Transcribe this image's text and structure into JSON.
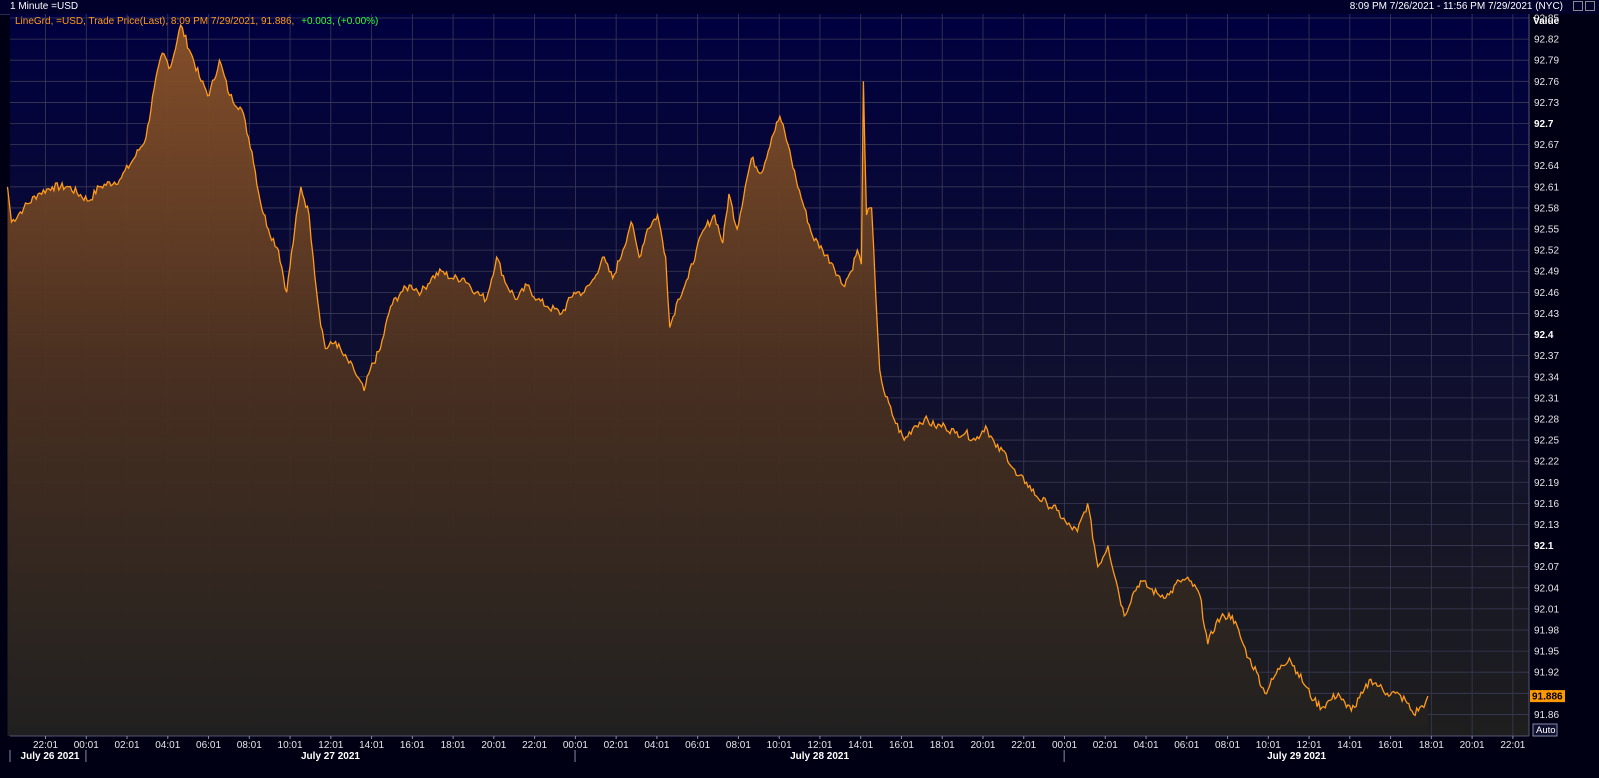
{
  "window": {
    "title": "1 Minute =USD",
    "range_text": "8:09 PM 7/26/2021 - 11:56 PM 7/29/2021 (NYC)"
  },
  "legend": {
    "prefix": "LineGrd, =USD, Trade Price(Last), 8:09 PM 7/29/2021, 91.886,",
    "change": "+0.003, (+0.00%)"
  },
  "axis": {
    "value_label": "Value",
    "auto_label": "Auto",
    "last_value_label": "91.886"
  },
  "colors": {
    "line": "#ff9a1a",
    "change": "#33ff33",
    "grid": "#3a3a55",
    "background": "#000033",
    "last_badge": "#ff9900"
  },
  "chart_data": {
    "type": "area",
    "title": "",
    "ylim": [
      91.835,
      92.85
    ],
    "y_ticks": [
      "92.85",
      "92.82",
      "92.79",
      "92.76",
      "92.73",
      "92.7",
      "92.67",
      "92.64",
      "92.61",
      "92.58",
      "92.55",
      "92.52",
      "92.49",
      "92.46",
      "92.43",
      "92.4",
      "92.37",
      "92.34",
      "92.31",
      "92.28",
      "92.25",
      "92.22",
      "92.19",
      "92.16",
      "92.13",
      "92.1",
      "92.07",
      "92.04",
      "92.01",
      "91.98",
      "91.95",
      "91.92",
      "91.89",
      "91.86"
    ],
    "y_bold_ticks": [
      "92.7",
      "92.4",
      "92.1"
    ],
    "x_ticks": [
      "22:01",
      "00:01",
      "02:01",
      "04:01",
      "06:01",
      "08:01",
      "10:01",
      "12:01",
      "14:01",
      "16:01",
      "18:01",
      "20:01",
      "22:01",
      "00:01",
      "02:01",
      "04:01",
      "06:01",
      "08:01",
      "10:01",
      "12:01",
      "14:01",
      "16:01",
      "18:01",
      "20:01",
      "22:01",
      "00:01",
      "02:01",
      "04:01",
      "06:01",
      "08:01",
      "10:01",
      "12:01",
      "14:01",
      "16:01",
      "18:01",
      "20:01",
      "22:01"
    ],
    "day_labels": [
      {
        "label": "July 26 2021",
        "start": "20:09"
      },
      {
        "label": "July 27 2021",
        "start": "00:00"
      },
      {
        "label": "July 28 2021",
        "start": "00:00"
      },
      {
        "label": "July 29 2021",
        "start": "00:00"
      }
    ],
    "x_units": "hours since 20:09 July 26 2021 (NYC)",
    "series": [
      {
        "values": [
          [
            0,
            92.61
          ],
          [
            0.2,
            92.56
          ],
          [
            0.8,
            92.58
          ],
          [
            1.5,
            92.6
          ],
          [
            2.2,
            92.61
          ],
          [
            3.0,
            92.61
          ],
          [
            4.0,
            92.59
          ],
          [
            4.5,
            92.61
          ],
          [
            5.5,
            92.62
          ],
          [
            6.2,
            92.65
          ],
          [
            6.8,
            92.68
          ],
          [
            7.2,
            92.75
          ],
          [
            7.6,
            92.8
          ],
          [
            8.0,
            92.78
          ],
          [
            8.5,
            92.84
          ],
          [
            9.0,
            92.8
          ],
          [
            9.5,
            92.76
          ],
          [
            9.9,
            92.74
          ],
          [
            10.4,
            92.79
          ],
          [
            10.9,
            92.74
          ],
          [
            11.5,
            92.72
          ],
          [
            12.0,
            92.66
          ],
          [
            12.4,
            92.59
          ],
          [
            12.8,
            92.55
          ],
          [
            13.3,
            92.52
          ],
          [
            13.7,
            92.46
          ],
          [
            14.1,
            92.55
          ],
          [
            14.4,
            92.61
          ],
          [
            14.8,
            92.57
          ],
          [
            15.0,
            92.51
          ],
          [
            15.3,
            92.43
          ],
          [
            15.6,
            92.38
          ],
          [
            16.1,
            92.39
          ],
          [
            16.5,
            92.37
          ],
          [
            17.0,
            92.35
          ],
          [
            17.5,
            92.32
          ],
          [
            17.8,
            92.35
          ],
          [
            18.3,
            92.38
          ],
          [
            18.8,
            92.44
          ],
          [
            19.3,
            92.46
          ],
          [
            19.8,
            92.47
          ],
          [
            20.3,
            92.46
          ],
          [
            20.8,
            92.48
          ],
          [
            21.3,
            92.49
          ],
          [
            21.8,
            92.48
          ],
          [
            22.4,
            92.48
          ],
          [
            23.0,
            92.46
          ],
          [
            23.5,
            92.45
          ],
          [
            24.0,
            92.51
          ],
          [
            24.5,
            92.47
          ],
          [
            25.0,
            92.45
          ],
          [
            25.5,
            92.47
          ],
          [
            26.0,
            92.45
          ],
          [
            26.5,
            92.44
          ],
          [
            27.2,
            92.43
          ],
          [
            27.8,
            92.46
          ],
          [
            28.3,
            92.46
          ],
          [
            28.8,
            92.48
          ],
          [
            29.2,
            92.51
          ],
          [
            29.7,
            92.48
          ],
          [
            30.2,
            92.52
          ],
          [
            30.6,
            92.56
          ],
          [
            31.0,
            92.51
          ],
          [
            31.4,
            92.55
          ],
          [
            31.9,
            92.57
          ],
          [
            32.3,
            92.51
          ],
          [
            32.5,
            92.41
          ],
          [
            32.9,
            92.45
          ],
          [
            33.4,
            92.48
          ],
          [
            33.8,
            92.52
          ],
          [
            34.2,
            92.55
          ],
          [
            34.7,
            92.57
          ],
          [
            35.1,
            92.53
          ],
          [
            35.4,
            92.6
          ],
          [
            35.8,
            92.55
          ],
          [
            36.2,
            92.61
          ],
          [
            36.5,
            92.65
          ],
          [
            37.0,
            92.63
          ],
          [
            37.5,
            92.68
          ],
          [
            37.9,
            92.71
          ],
          [
            38.3,
            92.67
          ],
          [
            38.7,
            92.62
          ],
          [
            39.1,
            92.58
          ],
          [
            39.5,
            92.54
          ],
          [
            40.0,
            92.52
          ],
          [
            40.5,
            92.5
          ],
          [
            41.0,
            92.47
          ],
          [
            41.4,
            92.49
          ],
          [
            41.7,
            92.52
          ],
          [
            41.9,
            92.5
          ],
          [
            42.0,
            92.76
          ],
          [
            42.15,
            92.57
          ],
          [
            42.4,
            92.58
          ],
          [
            42.6,
            92.46
          ],
          [
            42.8,
            92.35
          ],
          [
            43.0,
            92.32
          ],
          [
            43.5,
            92.28
          ],
          [
            44.0,
            92.25
          ],
          [
            44.5,
            92.27
          ],
          [
            45.0,
            92.28
          ],
          [
            45.5,
            92.27
          ],
          [
            46.0,
            92.27
          ],
          [
            46.5,
            92.26
          ],
          [
            47.0,
            92.26
          ],
          [
            47.5,
            92.25
          ],
          [
            48.0,
            92.27
          ],
          [
            48.5,
            92.24
          ],
          [
            49.0,
            92.23
          ],
          [
            49.5,
            92.2
          ],
          [
            50.0,
            92.19
          ],
          [
            50.5,
            92.17
          ],
          [
            51.0,
            92.16
          ],
          [
            51.5,
            92.15
          ],
          [
            52.0,
            92.13
          ],
          [
            52.5,
            92.12
          ],
          [
            53.0,
            92.16
          ],
          [
            53.5,
            92.07
          ],
          [
            54.0,
            92.1
          ],
          [
            54.4,
            92.05
          ],
          [
            54.8,
            92.0
          ],
          [
            55.2,
            92.03
          ],
          [
            55.6,
            92.05
          ],
          [
            56.0,
            92.04
          ],
          [
            56.5,
            92.03
          ],
          [
            57.0,
            92.03
          ],
          [
            57.5,
            92.05
          ],
          [
            58.0,
            92.05
          ],
          [
            58.5,
            92.03
          ],
          [
            58.9,
            91.96
          ],
          [
            59.3,
            91.99
          ],
          [
            59.7,
            92.0
          ],
          [
            60.1,
            92.0
          ],
          [
            60.5,
            91.97
          ],
          [
            60.9,
            91.94
          ],
          [
            61.3,
            91.92
          ],
          [
            61.7,
            91.89
          ],
          [
            62.1,
            91.91
          ],
          [
            62.5,
            91.93
          ],
          [
            62.9,
            91.94
          ],
          [
            63.3,
            91.92
          ],
          [
            63.7,
            91.9
          ],
          [
            64.1,
            91.88
          ],
          [
            64.5,
            91.87
          ],
          [
            64.9,
            91.88
          ],
          [
            65.3,
            91.89
          ],
          [
            65.7,
            91.87
          ],
          [
            66.1,
            91.87
          ],
          [
            66.5,
            91.89
          ],
          [
            66.9,
            91.91
          ],
          [
            67.3,
            91.9
          ],
          [
            67.7,
            91.89
          ],
          [
            68.1,
            91.89
          ],
          [
            68.6,
            91.88
          ],
          [
            69.0,
            91.86
          ],
          [
            69.3,
            91.87
          ],
          [
            69.5,
            91.87
          ],
          [
            69.7,
            91.886
          ]
        ]
      }
    ]
  }
}
